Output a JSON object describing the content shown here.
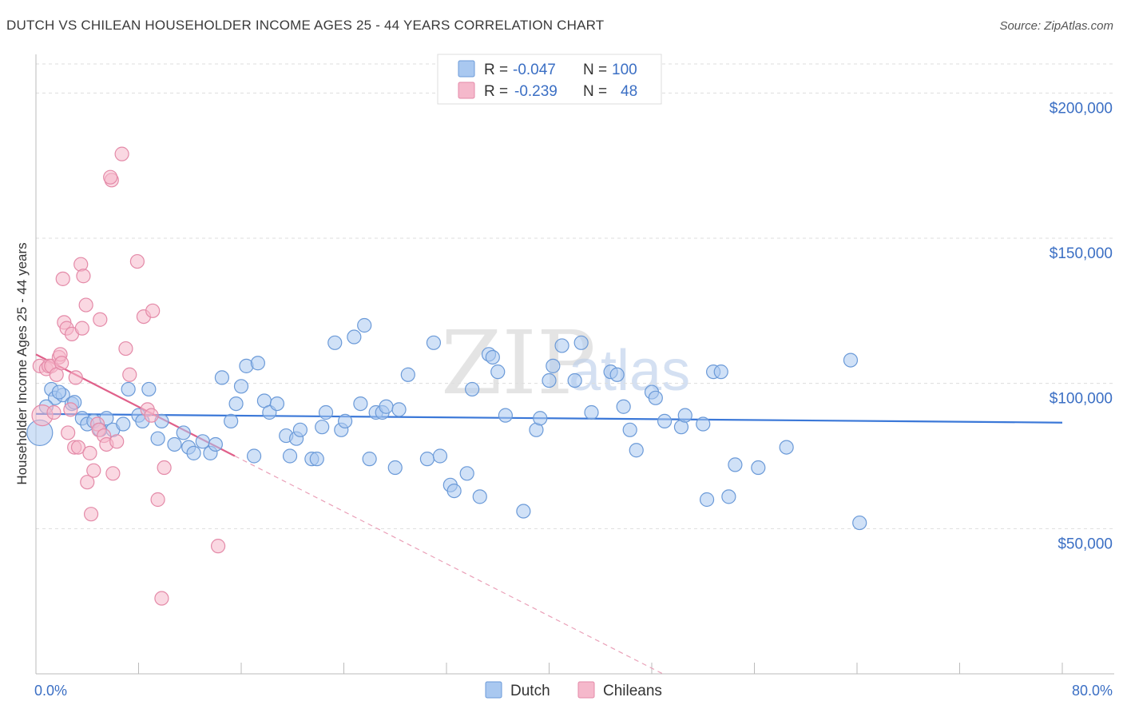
{
  "header": {
    "title": "DUTCH VS CHILEAN HOUSEHOLDER INCOME AGES 25 - 44 YEARS CORRELATION CHART",
    "source": "Source: ZipAtlas.com"
  },
  "watermark": {
    "zip": "ZIP",
    "atlas": "atlas"
  },
  "legend": {
    "rows": [
      {
        "r_label": "R =",
        "r_value": "-0.047",
        "n_label": "N =",
        "n_value": "100",
        "color": "#a9c8f0"
      },
      {
        "r_label": "R =",
        "r_value": "-0.239",
        "n_label": "N =",
        "n_value": "48",
        "color": "#f5b8cb"
      }
    ]
  },
  "bottom_legend": [
    {
      "label": "Dutch",
      "color": "#a9c8f0"
    },
    {
      "label": "Chileans",
      "color": "#f5b8cb"
    }
  ],
  "chart_data": {
    "type": "scatter",
    "title": "DUTCH VS CHILEAN HOUSEHOLDER INCOME AGES 25 - 44 YEARS CORRELATION CHART",
    "xlabel": "",
    "ylabel": "Householder Income Ages 25 - 44 years",
    "xlim": [
      0,
      80
    ],
    "ylim": [
      0,
      210000
    ],
    "x_tick_labels": [
      "0.0%",
      "80.0%"
    ],
    "y_ticks": [
      50000,
      100000,
      150000,
      200000
    ],
    "y_tick_labels": [
      "$50,000",
      "$100,000",
      "$150,000",
      "$200,000"
    ],
    "grid": true,
    "colors": {
      "dutch": "#3b78d8",
      "dutch_fill": "#a9c8f0",
      "chileans": "#e0608a",
      "chileans_fill": "#f5b8cb"
    },
    "series": [
      {
        "name": "Dutch",
        "trend": {
          "x": [
            0,
            80
          ],
          "y": [
            89500,
            86500
          ]
        },
        "points": [
          [
            1.2,
            98000
          ],
          [
            1.5,
            95000
          ],
          [
            2.1,
            96000
          ],
          [
            2.8,
            93000
          ],
          [
            3.0,
            93500
          ],
          [
            3.6,
            88000
          ],
          [
            4.0,
            86000
          ],
          [
            4.5,
            87000
          ],
          [
            5.0,
            84000
          ],
          [
            5.5,
            88000
          ],
          [
            6.0,
            84000
          ],
          [
            6.8,
            86000
          ],
          [
            7.2,
            98000
          ],
          [
            8.0,
            89000
          ],
          [
            8.3,
            87000
          ],
          [
            8.8,
            98000
          ],
          [
            9.5,
            81000
          ],
          [
            9.8,
            87000
          ],
          [
            10.8,
            79000
          ],
          [
            11.5,
            83000
          ],
          [
            11.9,
            78000
          ],
          [
            12.3,
            76000
          ],
          [
            13.0,
            80000
          ],
          [
            13.6,
            76000
          ],
          [
            14.0,
            79000
          ],
          [
            14.5,
            102000
          ],
          [
            15.2,
            87000
          ],
          [
            15.6,
            93000
          ],
          [
            16.0,
            99000
          ],
          [
            16.4,
            106000
          ],
          [
            17.0,
            75000
          ],
          [
            17.3,
            107000
          ],
          [
            17.8,
            94000
          ],
          [
            18.2,
            90000
          ],
          [
            18.8,
            93000
          ],
          [
            19.5,
            82000
          ],
          [
            19.8,
            75000
          ],
          [
            20.3,
            81000
          ],
          [
            20.6,
            84000
          ],
          [
            21.5,
            74000
          ],
          [
            21.9,
            74000
          ],
          [
            22.3,
            85000
          ],
          [
            22.6,
            90000
          ],
          [
            23.3,
            114000
          ],
          [
            23.8,
            84000
          ],
          [
            24.1,
            87000
          ],
          [
            24.8,
            116000
          ],
          [
            25.3,
            93000
          ],
          [
            25.6,
            120000
          ],
          [
            26.0,
            74000
          ],
          [
            26.5,
            90000
          ],
          [
            27.0,
            90000
          ],
          [
            27.3,
            92000
          ],
          [
            28.0,
            71000
          ],
          [
            28.3,
            91000
          ],
          [
            29.0,
            103000
          ],
          [
            30.5,
            74000
          ],
          [
            31.0,
            114000
          ],
          [
            31.5,
            75000
          ],
          [
            32.3,
            65000
          ],
          [
            32.6,
            63000
          ],
          [
            33.6,
            69000
          ],
          [
            34.0,
            98000
          ],
          [
            34.6,
            61000
          ],
          [
            35.3,
            110000
          ],
          [
            35.6,
            109000
          ],
          [
            36.0,
            104000
          ],
          [
            36.6,
            89000
          ],
          [
            38.0,
            56000
          ],
          [
            39.0,
            84000
          ],
          [
            39.3,
            88000
          ],
          [
            40.3,
            106000
          ],
          [
            40.0,
            101000
          ],
          [
            41.0,
            113000
          ],
          [
            42.0,
            101000
          ],
          [
            42.5,
            114000
          ],
          [
            43.3,
            90000
          ],
          [
            44.8,
            104000
          ],
          [
            45.3,
            103000
          ],
          [
            45.8,
            92000
          ],
          [
            46.3,
            84000
          ],
          [
            46.8,
            77000
          ],
          [
            48.0,
            97000
          ],
          [
            48.3,
            95000
          ],
          [
            49.0,
            87000
          ],
          [
            50.3,
            85000
          ],
          [
            50.6,
            89000
          ],
          [
            52.0,
            86000
          ],
          [
            52.3,
            60000
          ],
          [
            52.8,
            104000
          ],
          [
            53.4,
            104000
          ],
          [
            54.0,
            61000
          ],
          [
            54.5,
            72000
          ],
          [
            56.3,
            71000
          ],
          [
            58.5,
            78000
          ],
          [
            63.5,
            108000
          ],
          [
            64.2,
            52000
          ],
          [
            0.3,
            83000
          ],
          [
            0.8,
            92000
          ],
          [
            1.8,
            97000
          ]
        ]
      },
      {
        "name": "Chileans",
        "trend": {
          "x": [
            0,
            15.5
          ],
          "y": [
            110000,
            75000
          ],
          "dashed_to": {
            "x": [
              15.5,
              80
            ],
            "y": [
              75000,
              -70000
            ]
          }
        },
        "points": [
          [
            0.3,
            106000
          ],
          [
            0.5,
            89000
          ],
          [
            0.8,
            105000
          ],
          [
            1.0,
            106000
          ],
          [
            1.2,
            106000
          ],
          [
            1.4,
            90000
          ],
          [
            1.6,
            103000
          ],
          [
            1.8,
            109000
          ],
          [
            1.9,
            110000
          ],
          [
            2.0,
            107000
          ],
          [
            2.1,
            136000
          ],
          [
            2.2,
            121000
          ],
          [
            2.4,
            119000
          ],
          [
            2.5,
            83000
          ],
          [
            2.7,
            91000
          ],
          [
            2.8,
            117000
          ],
          [
            3.0,
            78000
          ],
          [
            3.1,
            102000
          ],
          [
            3.3,
            78000
          ],
          [
            3.5,
            141000
          ],
          [
            3.6,
            119000
          ],
          [
            3.7,
            137000
          ],
          [
            3.9,
            127000
          ],
          [
            4.0,
            66000
          ],
          [
            4.2,
            76000
          ],
          [
            4.3,
            55000
          ],
          [
            4.5,
            70000
          ],
          [
            4.8,
            86000
          ],
          [
            4.9,
            84000
          ],
          [
            5.0,
            122000
          ],
          [
            5.3,
            82000
          ],
          [
            5.5,
            79000
          ],
          [
            5.9,
            170000
          ],
          [
            6.0,
            69000
          ],
          [
            6.3,
            80000
          ],
          [
            6.7,
            179000
          ],
          [
            7.0,
            112000
          ],
          [
            7.3,
            103000
          ],
          [
            7.9,
            142000
          ],
          [
            8.4,
            123000
          ],
          [
            8.7,
            91000
          ],
          [
            9.0,
            89000
          ],
          [
            9.1,
            125000
          ],
          [
            9.5,
            60000
          ],
          [
            9.8,
            26000
          ],
          [
            10.0,
            71000
          ],
          [
            5.8,
            171000
          ],
          [
            14.2,
            44000
          ]
        ]
      }
    ]
  }
}
